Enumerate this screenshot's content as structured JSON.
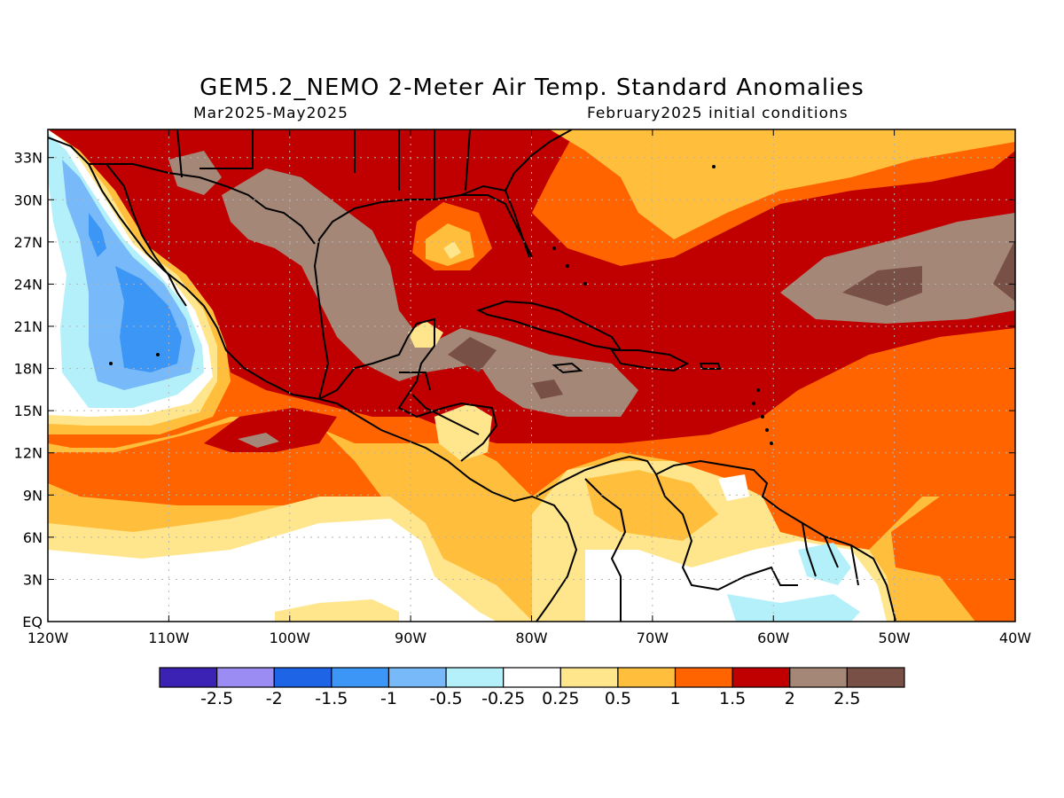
{
  "title": "GEM5.2_NEMO 2-Meter Air Temp. Standard Anomalies",
  "period": "Mar2025-May2025",
  "initial_conditions": "February2025 initial conditions",
  "lat_ticks": [
    "EQ",
    "3N",
    "6N",
    "9N",
    "12N",
    "15N",
    "18N",
    "21N",
    "24N",
    "27N",
    "30N",
    "33N"
  ],
  "lon_ticks": [
    "120W",
    "110W",
    "100W",
    "90W",
    "80W",
    "70W",
    "60W",
    "50W",
    "40W"
  ],
  "colorbar": {
    "colors": [
      "#3b22b4",
      "#9b8cf4",
      "#1e64e6",
      "#3c96f5",
      "#78b9fa",
      "#b4f0fa",
      "#ffffff",
      "#ffe68c",
      "#ffbe3c",
      "#ff6400",
      "#c00000",
      "#a58778",
      "#785046"
    ],
    "labels": [
      "-2.5",
      "-2",
      "-1.5",
      "-1",
      "-0.5",
      "-0.25",
      "0.25",
      "0.5",
      "1",
      "1.5",
      "2",
      "2.5"
    ]
  },
  "map": {
    "extent": {
      "lon_min": -120,
      "lon_max": -40,
      "lat_min": 0,
      "lat_max": 35
    },
    "grid": "dotted",
    "colors": {
      "land_outline": "#000000",
      "grid": "#b4b4b4"
    }
  }
}
